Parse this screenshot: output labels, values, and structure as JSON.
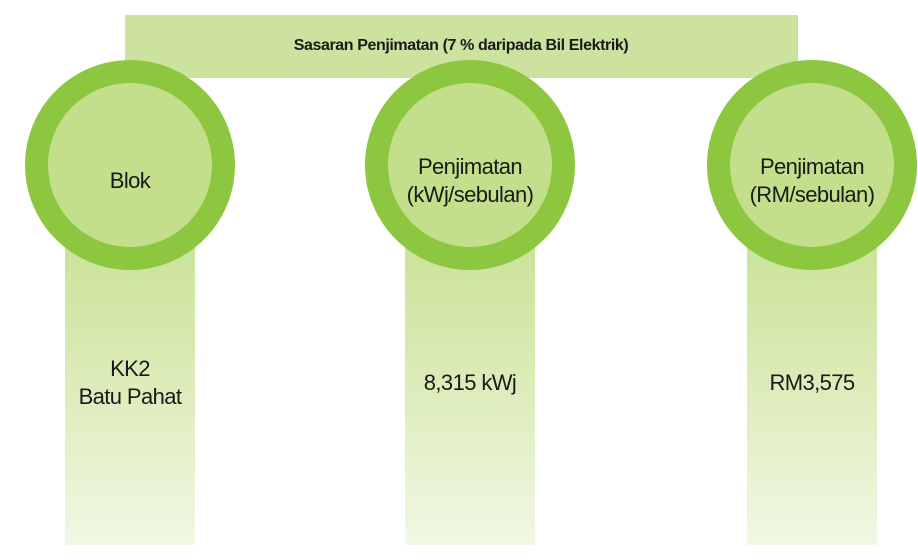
{
  "header": {
    "title": "Sasaran Penjimatan (7 % daripada Bil Elektrik)"
  },
  "columns": [
    {
      "label": [
        "Blok"
      ],
      "value": [
        "KK2",
        "Batu Pahat"
      ]
    },
    {
      "label": [
        "Penjimatan",
        "(kWj/sebulan)"
      ],
      "value": [
        "8,315 kWj"
      ]
    },
    {
      "label": [
        "Penjimatan",
        "(RM/sebulan)"
      ],
      "value": [
        "RM3,575"
      ]
    }
  ]
}
